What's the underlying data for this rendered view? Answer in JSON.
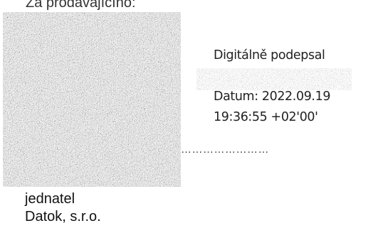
{
  "heading": "Za prodávajícího:",
  "signature": {
    "digitally_signed_by_label": "Digitálně podepsal",
    "date_line": "Datum: 2022.09.19",
    "time_line": "19:36:55 +02'00'",
    "dotted_line": "……………………"
  },
  "signatory": {
    "role": "jednatel",
    "company": "Datok, s.r.o."
  }
}
